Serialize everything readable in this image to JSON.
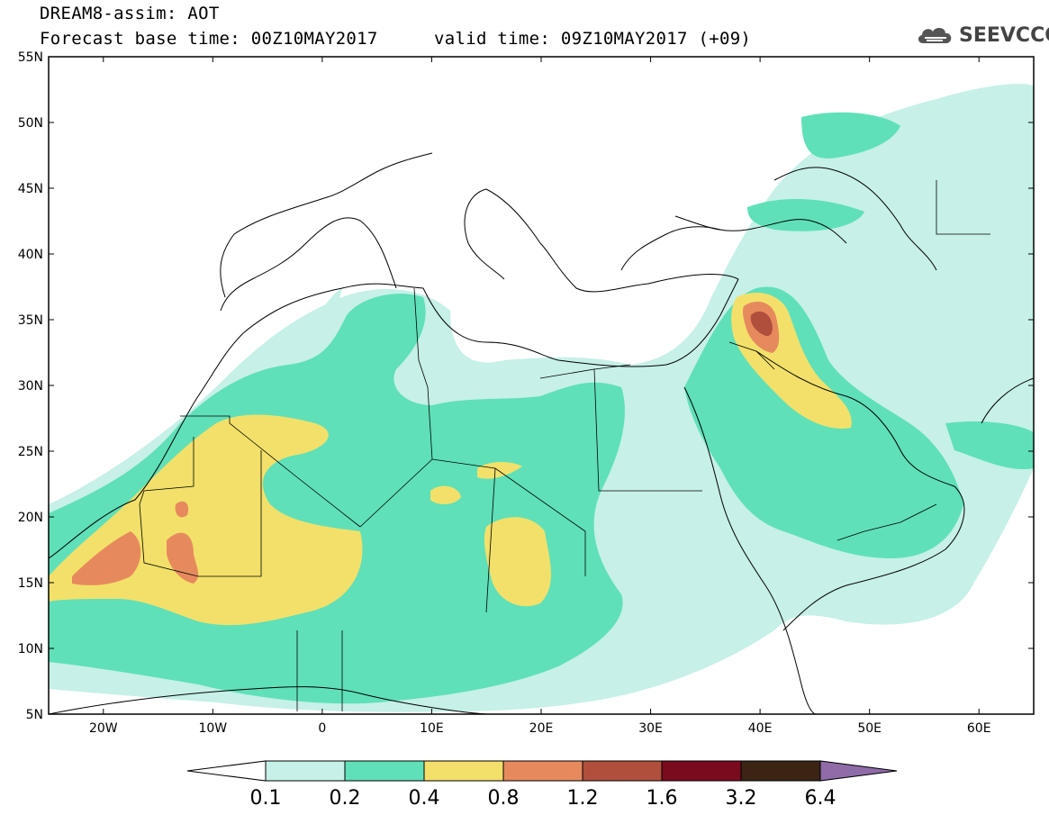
{
  "title": {
    "line1": "DREAM8-assim: AOT",
    "line2": "Forecast base time: 00Z10MAY2017",
    "line2b": "valid time: 09Z10MAY2017 (+09)"
  },
  "logo": {
    "text": "SEEVCCC",
    "icon": "cloud-icon"
  },
  "map": {
    "extent": {
      "lon": [
        -25,
        65
      ],
      "lat": [
        5,
        55
      ]
    },
    "lat_ticks": [
      "5N",
      "10N",
      "15N",
      "20N",
      "25N",
      "30N",
      "35N",
      "40N",
      "45N",
      "50N",
      "55N"
    ],
    "lon_ticks": [
      "20W",
      "10W",
      "0",
      "10E",
      "20E",
      "30E",
      "40E",
      "50E",
      "60E"
    ]
  },
  "colorbar": {
    "labels": [
      "0.1",
      "0.2",
      "0.4",
      "0.8",
      "1.2",
      "1.6",
      "3.2",
      "6.4"
    ],
    "colors": [
      "#ffffff",
      "#c6f0e8",
      "#5fe0b8",
      "#f3e06a",
      "#e68a5e",
      "#b04f3c",
      "#7a0b1f",
      "#3b2414",
      "#8f6ba8"
    ]
  }
}
